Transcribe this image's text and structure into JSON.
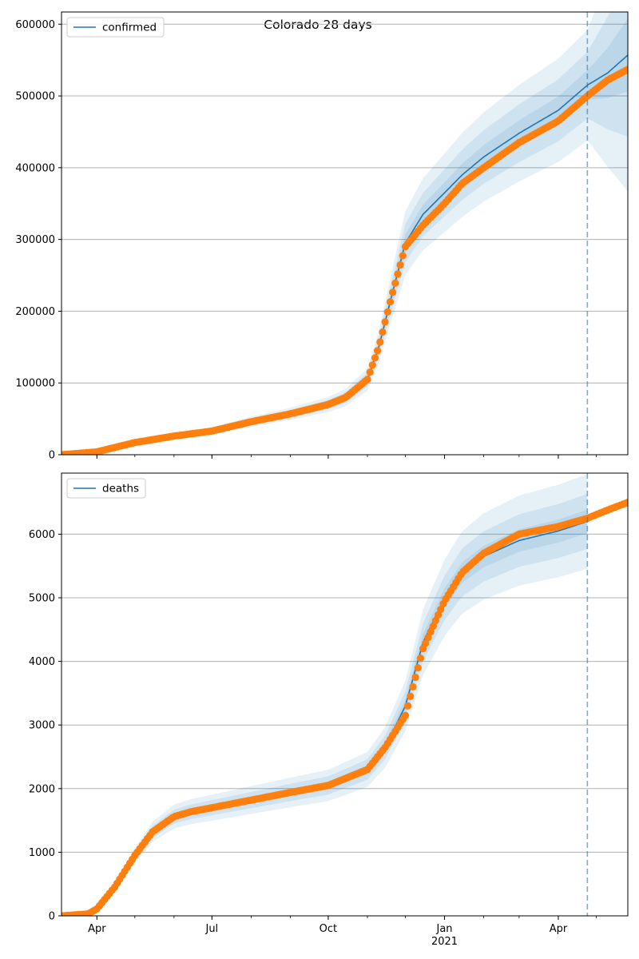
{
  "figure_title": "Colorado 28 days",
  "colors": {
    "model": "#1f77b4",
    "observed": "#ff7f0e",
    "band": "#1f77b4",
    "grid": "#b0b0b0",
    "vline": "#1f77b4"
  },
  "x_axis": {
    "min": "2020-03-04",
    "max": "2021-05-26",
    "major_ticks": [
      {
        "date": "2020-04-01",
        "label": "Apr"
      },
      {
        "date": "2020-07-01",
        "label": "Jul"
      },
      {
        "date": "2020-10-01",
        "label": "Oct"
      },
      {
        "date": "2021-01-01",
        "label": "Jan"
      },
      {
        "date": "2021-04-01",
        "label": "Apr"
      }
    ],
    "year_label": {
      "date": "2021-01-01",
      "label": "2021"
    },
    "forecast_start": "2021-04-24"
  },
  "chart_data": [
    {
      "type": "line",
      "legend": "confirmed",
      "legend_position": "upper-left",
      "grid": "y",
      "ylim": [
        0,
        617000
      ],
      "yticks": [
        0,
        100000,
        200000,
        300000,
        400000,
        500000,
        600000
      ],
      "model": [
        [
          "2020-03-04",
          0
        ],
        [
          "2020-04-01",
          4000
        ],
        [
          "2020-05-01",
          17000
        ],
        [
          "2020-06-01",
          26000
        ],
        [
          "2020-07-01",
          33000
        ],
        [
          "2020-08-01",
          46000
        ],
        [
          "2020-09-01",
          57000
        ],
        [
          "2020-10-01",
          70000
        ],
        [
          "2020-10-15",
          80000
        ],
        [
          "2020-11-01",
          105000
        ],
        [
          "2020-11-10",
          150000
        ],
        [
          "2020-11-20",
          220000
        ],
        [
          "2020-12-01",
          295000
        ],
        [
          "2020-12-15",
          335000
        ],
        [
          "2021-01-01",
          365000
        ],
        [
          "2021-01-15",
          390000
        ],
        [
          "2021-02-01",
          415000
        ],
        [
          "2021-03-01",
          448000
        ],
        [
          "2021-04-01",
          480000
        ],
        [
          "2021-04-24",
          515000
        ],
        [
          "2021-05-10",
          532000
        ],
        [
          "2021-05-26",
          557000
        ]
      ],
      "band_spread": [
        0.04,
        0.09,
        0.15
      ],
      "observed": [
        [
          "2020-03-04",
          0
        ],
        [
          "2020-04-01",
          4000
        ],
        [
          "2020-05-01",
          17000
        ],
        [
          "2020-06-01",
          26000
        ],
        [
          "2020-07-01",
          33000
        ],
        [
          "2020-08-01",
          46000
        ],
        [
          "2020-09-01",
          57000
        ],
        [
          "2020-10-01",
          70000
        ],
        [
          "2020-10-15",
          80000
        ],
        [
          "2020-11-01",
          105000
        ],
        [
          "2020-11-10",
          150000
        ],
        [
          "2020-11-20",
          220000
        ],
        [
          "2020-12-01",
          290000
        ],
        [
          "2020-12-15",
          320000
        ],
        [
          "2021-01-01",
          350000
        ],
        [
          "2021-01-15",
          378000
        ],
        [
          "2021-02-01",
          400000
        ],
        [
          "2021-03-01",
          435000
        ],
        [
          "2021-04-01",
          465000
        ],
        [
          "2021-04-24",
          500000
        ],
        [
          "2021-05-10",
          522000
        ],
        [
          "2021-05-26",
          537000
        ]
      ]
    },
    {
      "type": "line",
      "legend": "deaths",
      "legend_position": "upper-left",
      "grid": "y",
      "ylim": [
        0,
        6960
      ],
      "yticks": [
        0,
        1000,
        2000,
        3000,
        4000,
        5000,
        6000
      ],
      "model": [
        [
          "2020-03-04",
          0
        ],
        [
          "2020-03-25",
          30
        ],
        [
          "2020-04-01",
          110
        ],
        [
          "2020-04-15",
          450
        ],
        [
          "2020-05-01",
          950
        ],
        [
          "2020-05-15",
          1320
        ],
        [
          "2020-06-01",
          1560
        ],
        [
          "2020-06-15",
          1640
        ],
        [
          "2020-07-01",
          1700
        ],
        [
          "2020-08-01",
          1820
        ],
        [
          "2020-09-01",
          1940
        ],
        [
          "2020-10-01",
          2050
        ],
        [
          "2020-11-01",
          2300
        ],
        [
          "2020-11-15",
          2650
        ],
        [
          "2020-12-01",
          3300
        ],
        [
          "2020-12-15",
          4300
        ],
        [
          "2021-01-01",
          5000
        ],
        [
          "2021-01-15",
          5400
        ],
        [
          "2021-02-01",
          5650
        ],
        [
          "2021-03-01",
          5900
        ],
        [
          "2021-04-01",
          6050
        ],
        [
          "2021-04-24",
          6200
        ]
      ],
      "band_spread": [
        0.03,
        0.07,
        0.12
      ],
      "observed": [
        [
          "2020-03-04",
          0
        ],
        [
          "2020-03-25",
          30
        ],
        [
          "2020-04-01",
          110
        ],
        [
          "2020-04-15",
          450
        ],
        [
          "2020-05-01",
          950
        ],
        [
          "2020-05-15",
          1320
        ],
        [
          "2020-06-01",
          1560
        ],
        [
          "2020-06-15",
          1640
        ],
        [
          "2020-07-01",
          1700
        ],
        [
          "2020-08-01",
          1820
        ],
        [
          "2020-09-01",
          1940
        ],
        [
          "2020-10-01",
          2050
        ],
        [
          "2020-11-01",
          2300
        ],
        [
          "2020-11-15",
          2650
        ],
        [
          "2020-12-01",
          3150
        ],
        [
          "2020-12-15",
          4200
        ],
        [
          "2021-01-01",
          4950
        ],
        [
          "2021-01-15",
          5400
        ],
        [
          "2021-02-01",
          5700
        ],
        [
          "2021-03-01",
          6000
        ],
        [
          "2021-04-01",
          6120
        ],
        [
          "2021-04-24",
          6250
        ],
        [
          "2021-05-10",
          6380
        ],
        [
          "2021-05-26",
          6500
        ]
      ]
    }
  ]
}
